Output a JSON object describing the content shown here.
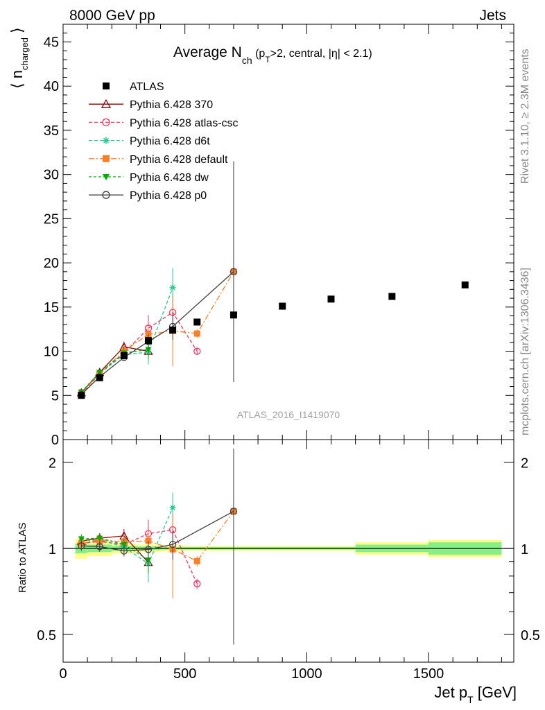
{
  "header": {
    "left": "8000 GeV pp",
    "right": "Jets"
  },
  "side_labels": {
    "rivet": "Rivet 3.1.10, ≥ 2.3M events",
    "mcplots": "mcplots.cern.ch [arXiv:1306.3436]"
  },
  "watermark": "ATLAS_2016_I1419070",
  "chart_data": {
    "type": "line",
    "title": {
      "main": "Average N",
      "sub": "ch",
      "rest1": " (p",
      "sub2": "T",
      "rest2": ">2, central, |η| < 2.1)"
    },
    "ylabel_main": {
      "text": "⟨ n",
      "sub": "charged",
      "close": " ⟩"
    },
    "xlabel": {
      "text": "Jet p",
      "sub": "T",
      "unit": " [GeV]"
    },
    "ylabel_ratio": "Ratio to ATLAS",
    "xlim": [
      0,
      1850
    ],
    "ylim_main": [
      0,
      47
    ],
    "ylim_ratio_log": [
      0.4,
      2.4
    ],
    "x_ticks": [
      0,
      500,
      1000,
      1500
    ],
    "y_ticks_main": [
      0,
      5,
      10,
      15,
      20,
      25,
      30,
      35,
      40,
      45
    ],
    "y_ticks_ratio": [
      0.5,
      1,
      2
    ],
    "data": {
      "name": "ATLAS",
      "color": "#000000",
      "points": [
        {
          "x": 75,
          "y": 5.0,
          "xl": 50,
          "xh": 100
        },
        {
          "x": 150,
          "y": 7.0,
          "xl": 100,
          "xh": 200
        },
        {
          "x": 250,
          "y": 9.5,
          "xl": 200,
          "xh": 300
        },
        {
          "x": 350,
          "y": 11.2,
          "xl": 300,
          "xh": 400
        },
        {
          "x": 450,
          "y": 12.4,
          "xl": 400,
          "xh": 500
        },
        {
          "x": 550,
          "y": 13.3,
          "xl": 500,
          "xh": 600
        },
        {
          "x": 700,
          "y": 14.1,
          "xl": 600,
          "xh": 800
        },
        {
          "x": 900,
          "y": 15.1,
          "xl": 800,
          "xh": 1000
        },
        {
          "x": 1100,
          "y": 15.9,
          "xl": 1000,
          "xh": 1200
        },
        {
          "x": 1350,
          "y": 16.2,
          "xl": 1200,
          "xh": 1500
        },
        {
          "x": 1650,
          "y": 17.5,
          "xl": 1500,
          "xh": 1800
        }
      ],
      "ratio_band_inner": [
        0.96,
        0.97,
        0.98,
        0.985,
        0.99,
        0.99,
        0.99,
        0.99,
        0.99,
        0.97,
        0.95
      ],
      "ratio_band_outer": [
        0.92,
        0.94,
        0.96,
        0.97,
        0.975,
        0.98,
        0.98,
        0.98,
        0.98,
        0.95,
        0.93
      ]
    },
    "series": [
      {
        "name": "Pythia 6.428 370",
        "color": "#8b0000",
        "marker": "triangle-open",
        "dash": "",
        "points": [
          {
            "x": 75,
            "y": 5.3,
            "e": 0.2
          },
          {
            "x": 150,
            "y": 7.6,
            "e": 0.3
          },
          {
            "x": 250,
            "y": 10.5,
            "e": 0.6
          },
          {
            "x": 350,
            "y": 10.0,
            "e": 1.0
          }
        ]
      },
      {
        "name": "Pythia 6.428 atlas-csc",
        "color": "#ff3060",
        "marker": "circle-open",
        "dash": "5,3",
        "points": [
          {
            "x": 75,
            "y": 5.2,
            "e": 0.2
          },
          {
            "x": 150,
            "y": 7.4,
            "e": 0.3
          },
          {
            "x": 250,
            "y": 9.8,
            "e": 0.5
          },
          {
            "x": 350,
            "y": 12.6,
            "e": 1.5
          },
          {
            "x": 450,
            "y": 14.4,
            "e": 2.0
          },
          {
            "x": 550,
            "y": 10.0,
            "e": 0.4
          }
        ]
      },
      {
        "name": "Pythia 6.428 d6t",
        "color": "#20c890",
        "marker": "star",
        "dash": "5,3",
        "points": [
          {
            "x": 75,
            "y": 5.3,
            "e": 0.2
          },
          {
            "x": 150,
            "y": 7.5,
            "e": 0.3
          },
          {
            "x": 250,
            "y": 9.6,
            "e": 0.5
          },
          {
            "x": 350,
            "y": 9.9,
            "e": 1.4
          },
          {
            "x": 450,
            "y": 17.2,
            "e": 2.2
          }
        ]
      },
      {
        "name": "Pythia 6.428 default",
        "color": "#ff7f27",
        "marker": "square",
        "dash": "8,3,2,3",
        "points": [
          {
            "x": 75,
            "y": 5.2,
            "e": 0.2
          },
          {
            "x": 150,
            "y": 7.5,
            "e": 0.3
          },
          {
            "x": 250,
            "y": 10.0,
            "e": 0.6
          },
          {
            "x": 350,
            "y": 11.9,
            "e": 1.0
          },
          {
            "x": 450,
            "y": 12.3,
            "e": 4.0
          },
          {
            "x": 550,
            "y": 12.0,
            "e": 0.5
          },
          {
            "x": 700,
            "y": 19.0,
            "e": 0.5
          }
        ]
      },
      {
        "name": "Pythia 6.428 dw",
        "color": "#00aa00",
        "marker": "triangle-down",
        "dash": "4,3",
        "points": [
          {
            "x": 75,
            "y": 5.4,
            "e": 0.2
          },
          {
            "x": 150,
            "y": 7.6,
            "e": 0.3
          },
          {
            "x": 250,
            "y": 9.8,
            "e": 0.5
          },
          {
            "x": 350,
            "y": 10.2,
            "e": 1.0
          }
        ]
      },
      {
        "name": "Pythia 6.428 p0",
        "color": "#404040",
        "marker": "circle-open",
        "dash": "",
        "points": [
          {
            "x": 75,
            "y": 5.1,
            "e": 0.2
          },
          {
            "x": 150,
            "y": 7.1,
            "e": 0.3
          },
          {
            "x": 250,
            "y": 9.3,
            "e": 0.4
          },
          {
            "x": 350,
            "y": 11.1,
            "e": 0.8
          },
          {
            "x": 450,
            "y": 12.8,
            "e": 1.5
          },
          {
            "x": 700,
            "y": 19.0,
            "e": 12.5
          }
        ]
      }
    ]
  }
}
